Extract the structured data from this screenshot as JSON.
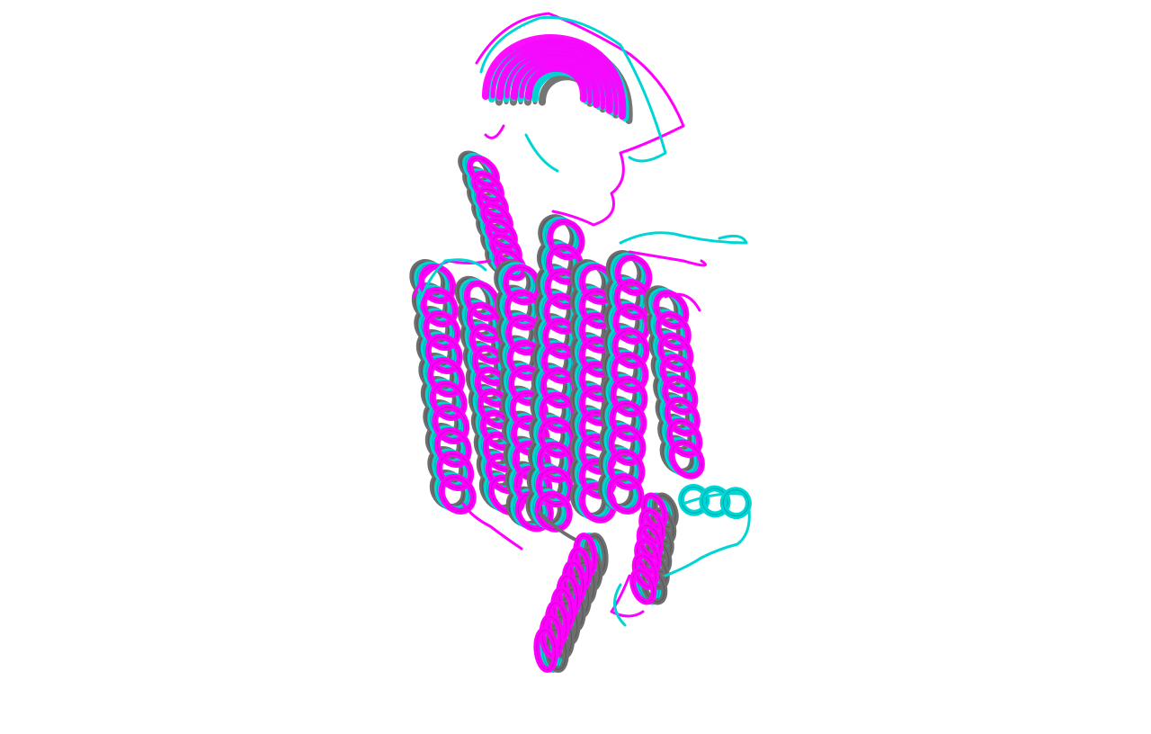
{
  "scene": {
    "background": "#ffffff",
    "subject": "protein-structure-overlay-icon",
    "structures": [
      {
        "color": "#ff00ff",
        "style": "cartoon"
      },
      {
        "color": "#00d5d5",
        "style": "cartoon"
      },
      {
        "color": "#6e6e6e",
        "style": "cartoon"
      }
    ]
  }
}
